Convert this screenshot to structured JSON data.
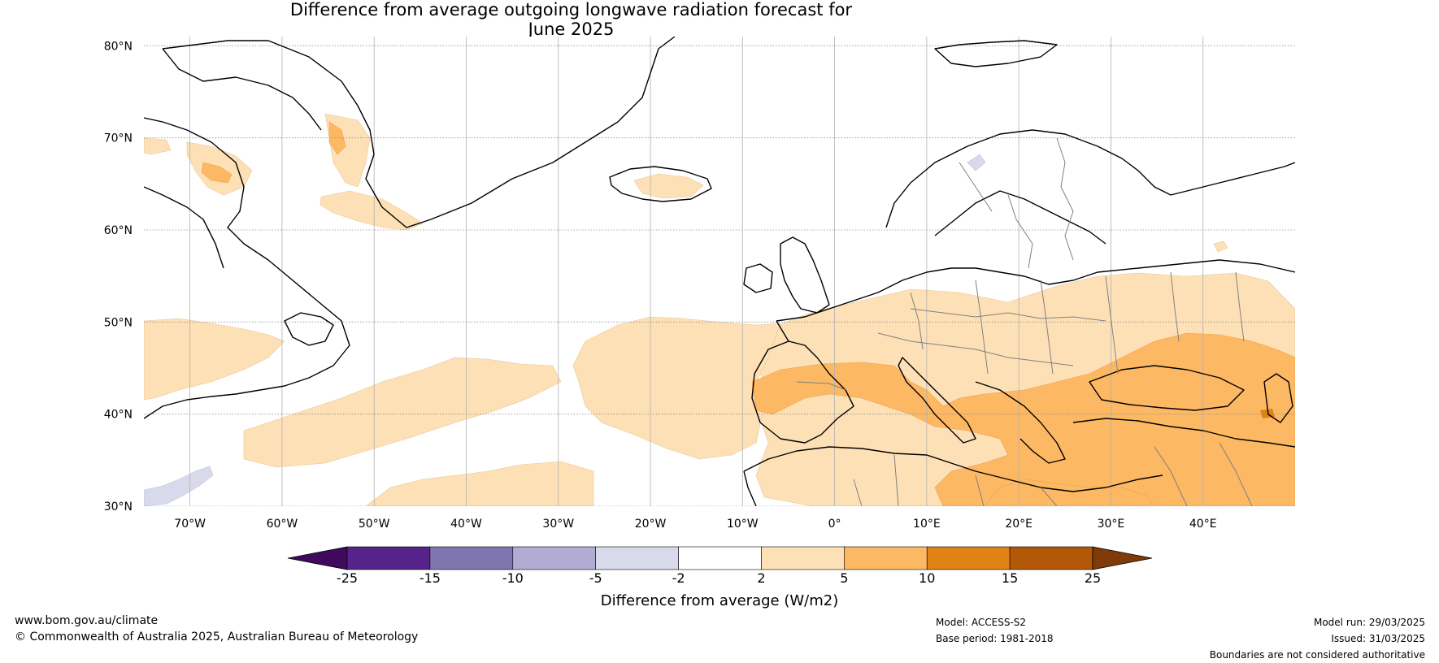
{
  "title": {
    "line1": "Difference from average outgoing longwave radiation forecast for",
    "line2": "June 2025"
  },
  "map": {
    "latitudes": [
      "80°N",
      "70°N",
      "60°N",
      "50°N",
      "40°N",
      "30°N"
    ],
    "longitudes": [
      "70°W",
      "60°W",
      "50°W",
      "40°W",
      "30°W",
      "20°W",
      "10°W",
      "0°",
      "10°E",
      "20°E",
      "30°E",
      "40°E"
    ],
    "extent": {
      "lon_min": -75,
      "lon_max": 50,
      "lat_min": 30,
      "lat_max": 81
    }
  },
  "colorbar": {
    "title": "Difference from average (W/m2)",
    "ticks": [
      "-25",
      "-15",
      "-10",
      "-5",
      "-2",
      "2",
      "5",
      "10",
      "15",
      "25"
    ],
    "colors": [
      "#3f0a5e",
      "#55238a",
      "#8175b0",
      "#b2abd3",
      "#d9d9ec",
      "#ffffff",
      "#fee0b6",
      "#fdb863",
      "#e08214",
      "#b35806",
      "#7f3b08"
    ]
  },
  "footer": {
    "url": "www.bom.gov.au/climate",
    "copyright": "© Commonwealth of Australia 2025, Australian Bureau of Meteorology",
    "model": "Model: ACCESS-S2",
    "base_period": "Base period: 1981-2018",
    "model_run": "Model run: 29/03/2025",
    "issued": "Issued: 31/03/2025",
    "disclaimer": "Boundaries are not considered authoritative"
  }
}
